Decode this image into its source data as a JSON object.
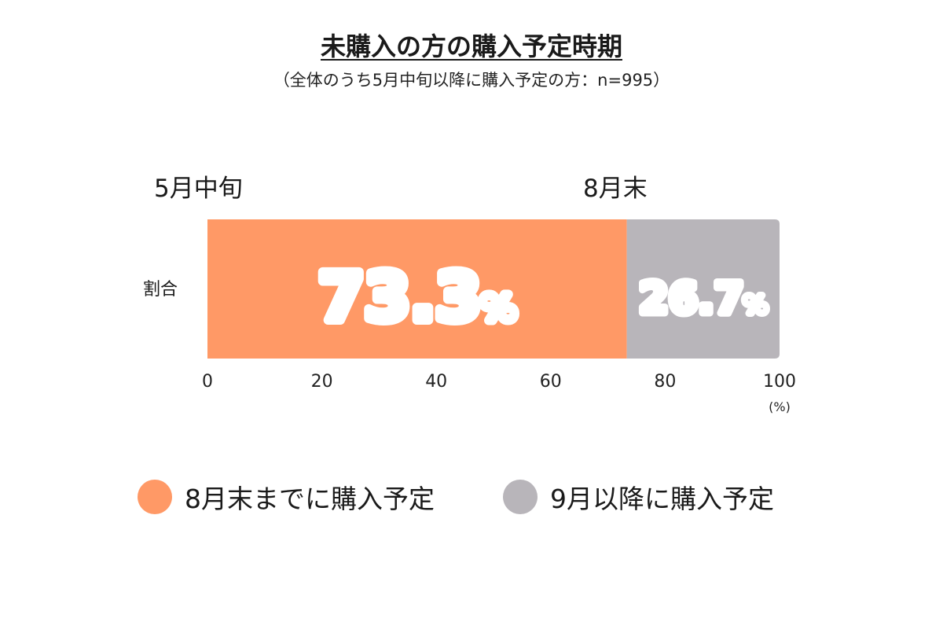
{
  "title": "未購入の方の購入予定時期",
  "subtitle": "（全体のうち5月中旬以降に購入予定の方：n=995）",
  "annotations": {
    "start": "5月中旬",
    "end": "8月末"
  },
  "chart_data": {
    "type": "bar",
    "orientation": "horizontal-stacked",
    "categories": [
      "割合"
    ],
    "series": [
      {
        "name": "8月末までに購入予定",
        "values": [
          73.3
        ],
        "color": "#FF9966",
        "label": "73.3",
        "label_unit": "%"
      },
      {
        "name": "9月以降に購入予定",
        "values": [
          26.7
        ],
        "color": "#B8B5BA",
        "label": "26.7",
        "label_unit": "%"
      }
    ],
    "xlim": [
      0,
      100
    ],
    "xticks": [
      "0",
      "20",
      "40",
      "60",
      "80",
      "100"
    ],
    "xunit": "(%)",
    "grid": false,
    "legend_position": "bottom"
  }
}
